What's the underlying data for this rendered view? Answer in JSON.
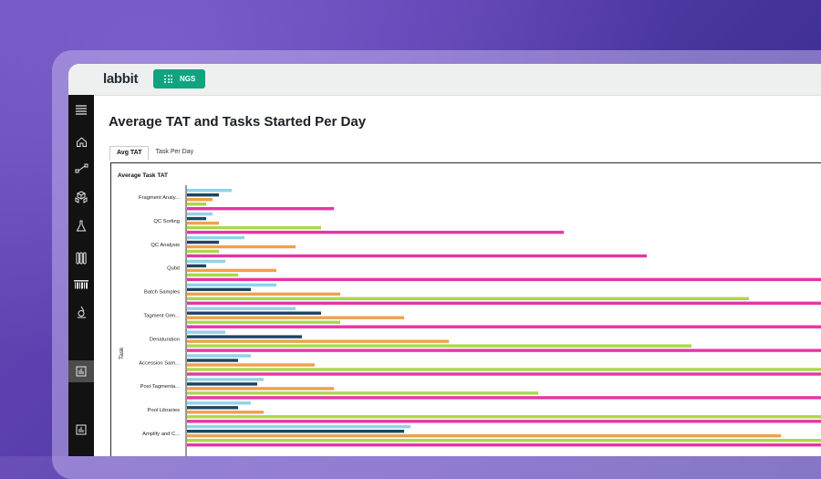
{
  "app": {
    "logo": "labbit",
    "module_button": "NGS"
  },
  "sidebar": {
    "items": [
      {
        "icon": "hamburger-menu-icon"
      },
      {
        "icon": "home-icon"
      },
      {
        "icon": "workflow-icon"
      },
      {
        "icon": "cubes-icon"
      },
      {
        "icon": "flask-icon"
      },
      {
        "icon": "test-tubes-icon"
      },
      {
        "icon": "barcode-icon"
      },
      {
        "icon": "microscope-icon"
      },
      {
        "icon": "bar-chart-icon",
        "active": true
      },
      {
        "icon": "bar-chart-icon"
      }
    ]
  },
  "page": {
    "title": "Average TAT and Tasks Started Per Day"
  },
  "tabs": [
    {
      "label": "Avg TAT",
      "active": true
    },
    {
      "label": "Task Per Day",
      "active": false
    }
  ],
  "colors": {
    "series": [
      "#8fd3ea",
      "#1e4560",
      "#f0a04b",
      "#a9d84a",
      "#e535a4"
    ]
  },
  "chart_data": {
    "type": "bar",
    "orientation": "horizontal",
    "title": "Average Task TAT",
    "ylabel": "Task",
    "categories": [
      "Fragment Analy...",
      "QC Sorting",
      "QC Analysis",
      "Qubit",
      "Batch Samples",
      "Tagment Gen...",
      "Denaturation",
      "Accession Sam...",
      "Post Tagmenta...",
      "Pool Libraries",
      "Amplify and C..."
    ],
    "x_max_visible": 100,
    "series_count": 5,
    "values": [
      [
        7,
        5,
        4,
        3,
        23
      ],
      [
        4,
        3,
        5,
        21,
        59
      ],
      [
        9,
        5,
        17,
        5,
        72
      ],
      [
        6,
        3,
        14,
        8,
        100
      ],
      [
        14,
        10,
        24,
        88,
        100
      ],
      [
        17,
        21,
        34,
        24,
        100
      ],
      [
        6,
        18,
        41,
        79,
        100
      ],
      [
        10,
        8,
        20,
        100,
        100
      ],
      [
        12,
        11,
        23,
        55,
        100
      ],
      [
        10,
        8,
        12,
        100,
        100
      ],
      [
        35,
        34,
        93,
        100,
        100
      ]
    ]
  }
}
